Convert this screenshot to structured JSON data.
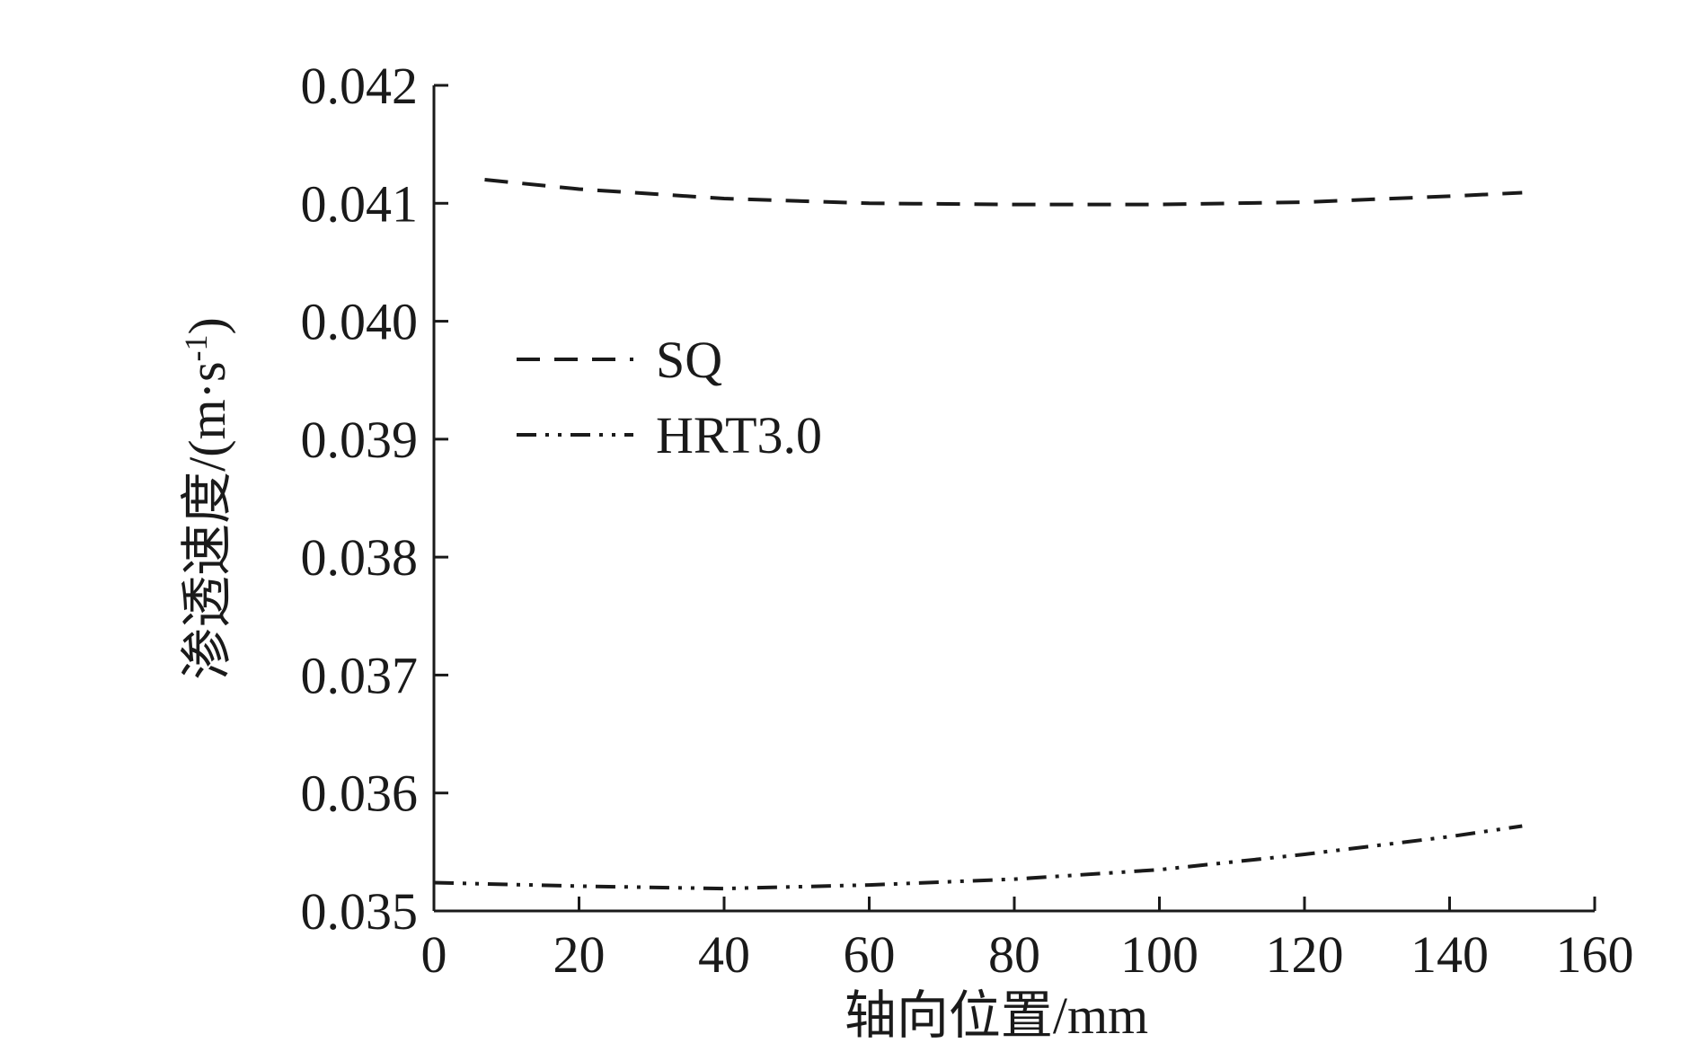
{
  "chart_data": {
    "type": "line",
    "xlabel": "轴向位置/mm",
    "ylabel": "渗透速度/(m·s",
    "ylabel_sup": "-1",
    "ylabel_close": ")",
    "xlim": [
      0,
      160
    ],
    "ylim": [
      0.035,
      0.042
    ],
    "x_ticks": [
      "0",
      "20",
      "40",
      "60",
      "80",
      "100",
      "120",
      "140",
      "160"
    ],
    "y_ticks": [
      "0.035",
      "0.036",
      "0.037",
      "0.038",
      "0.039",
      "0.040",
      "0.041",
      "0.042"
    ],
    "grid": false,
    "legend_position": "upper-left",
    "series": [
      {
        "name": "SQ",
        "style": "dashed",
        "color": "#1a1a1a",
        "x": [
          7,
          20,
          40,
          60,
          80,
          100,
          120,
          140,
          150
        ],
        "y": [
          0.0412,
          0.04112,
          0.04104,
          0.041,
          0.04099,
          0.04099,
          0.04101,
          0.04106,
          0.04109
        ]
      },
      {
        "name": "HRT3.0",
        "style": "dash-dot-dot",
        "color": "#1a1a1a",
        "x": [
          0,
          20,
          40,
          60,
          80,
          100,
          120,
          140,
          150
        ],
        "y": [
          0.03524,
          0.03521,
          0.03519,
          0.03522,
          0.03527,
          0.03535,
          0.03548,
          0.03563,
          0.03572
        ]
      }
    ]
  }
}
